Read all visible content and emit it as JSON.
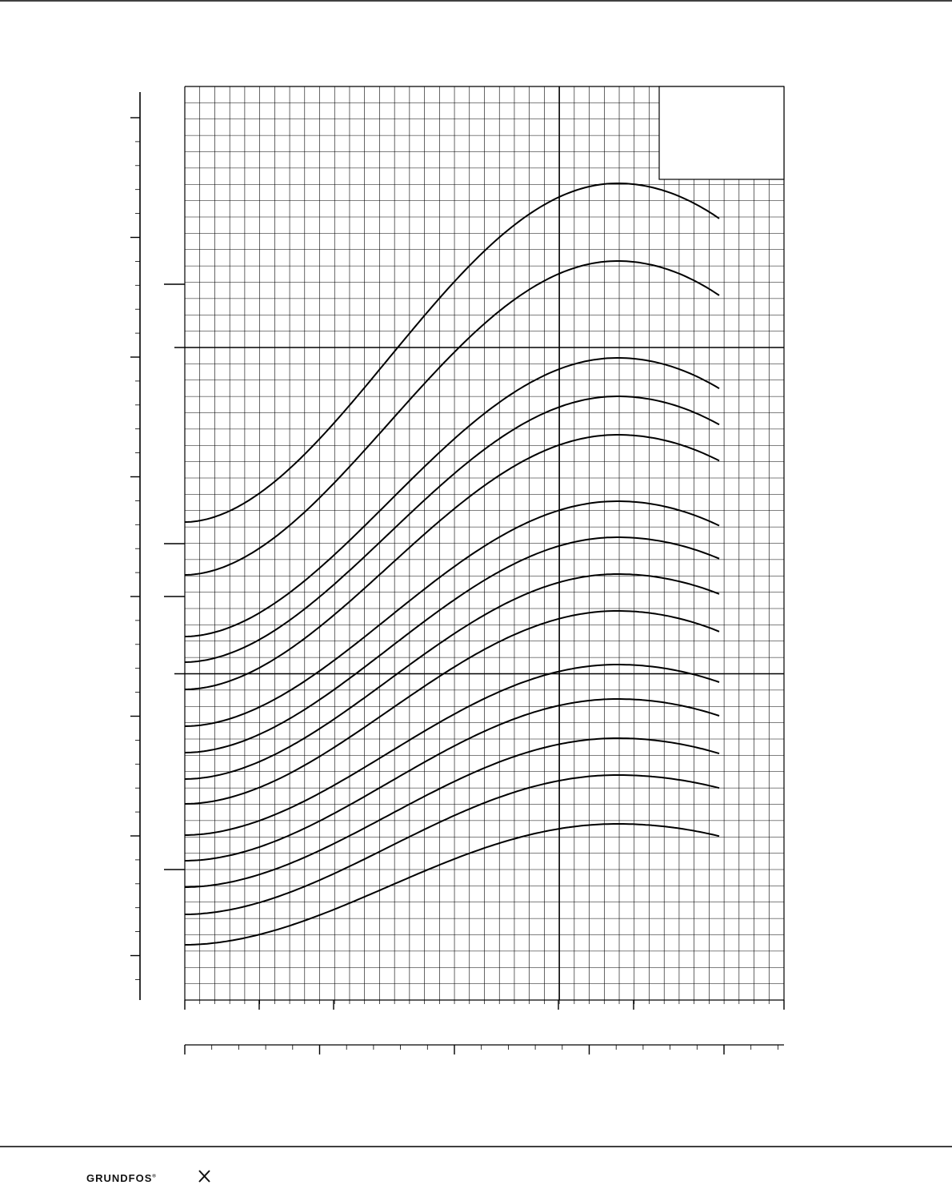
{
  "footer": {
    "logo": "GRUNDFOS"
  }
}
